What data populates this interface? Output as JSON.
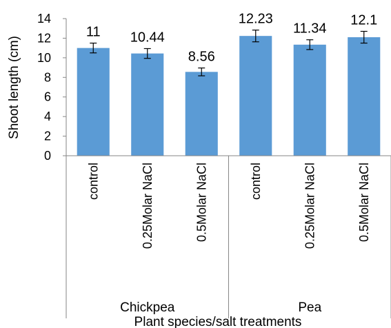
{
  "chart_data": {
    "type": "bar",
    "title": "",
    "xlabel": "Plant species/salt treatments",
    "ylabel": "Shoot length (cm)",
    "ylim": [
      0,
      14
    ],
    "yticks": [
      0,
      2,
      4,
      6,
      8,
      10,
      12,
      14
    ],
    "grid": false,
    "legend": "none",
    "bar_color": "#5b9bd5",
    "groups": [
      {
        "name": "Chickpea",
        "categories": [
          "control",
          "0.25Molar NaCl",
          "0.5Molar NaCl"
        ]
      },
      {
        "name": "Pea",
        "categories": [
          "control",
          "0.25Molar NaCl",
          "0.5Molar NaCl"
        ]
      }
    ],
    "values": [
      11,
      10.44,
      8.56,
      12.23,
      11.34,
      12.1
    ],
    "data_labels": [
      "11",
      "10.44",
      "8.56",
      "12.23",
      "11.34",
      "12.1"
    ],
    "error": [
      0.5,
      0.5,
      0.4,
      0.6,
      0.5,
      0.6
    ]
  }
}
